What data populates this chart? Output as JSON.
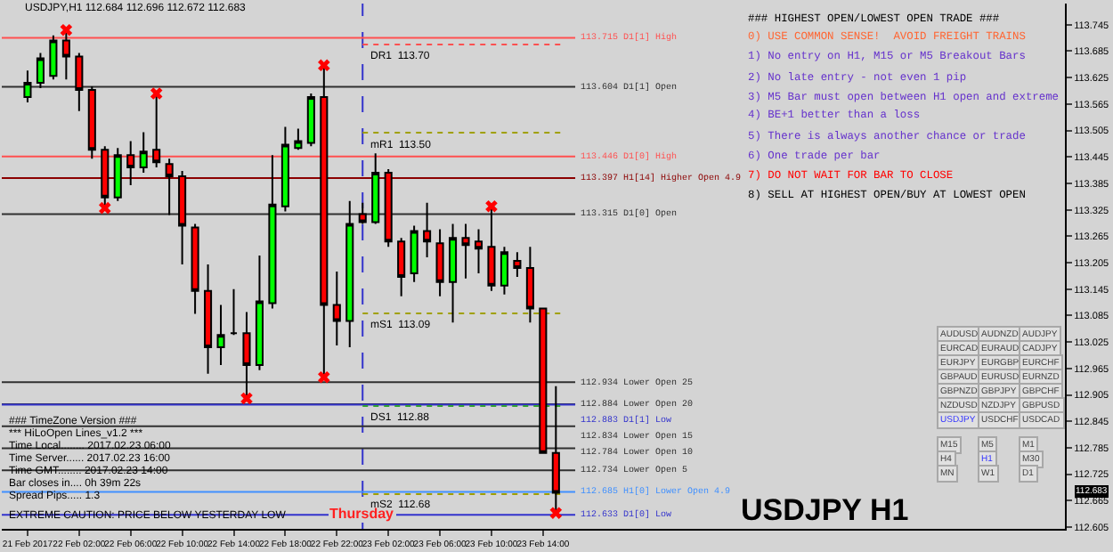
{
  "chart_data": [
    {
      "type": "candlestick",
      "title": "USDJPY,H1 112.684 112.696 112.672 112.683",
      "x": [
        "2017-02-21T22:00",
        "2017-02-21T23:00",
        "2017-02-22T00:00",
        "2017-02-22T01:00",
        "2017-02-22T02:00",
        "2017-02-22T03:00",
        "2017-02-22T04:00",
        "2017-02-22T05:00",
        "2017-02-22T06:00",
        "2017-02-22T07:00",
        "2017-02-22T08:00",
        "2017-02-22T09:00",
        "2017-02-22T10:00",
        "2017-02-22T11:00",
        "2017-02-22T12:00",
        "2017-02-22T13:00",
        "2017-02-22T14:00",
        "2017-02-22T15:00",
        "2017-02-22T16:00",
        "2017-02-22T17:00",
        "2017-02-22T18:00",
        "2017-02-22T19:00",
        "2017-02-22T20:00",
        "2017-02-22T21:00",
        "2017-02-22T22:00",
        "2017-02-22T23:00",
        "2017-02-23T00:00",
        "2017-02-23T01:00",
        "2017-02-23T02:00",
        "2017-02-23T03:00",
        "2017-02-23T04:00",
        "2017-02-23T05:00",
        "2017-02-23T06:00",
        "2017-02-23T07:00",
        "2017-02-23T08:00",
        "2017-02-23T09:00",
        "2017-02-23T10:00",
        "2017-02-23T11:00",
        "2017-02-23T12:00",
        "2017-02-23T13:00",
        "2017-02-23T14:00",
        "2017-02-23T15:00"
      ],
      "ohlc": [
        [
          113.581,
          113.641,
          113.569,
          113.613
        ],
        [
          113.613,
          113.681,
          113.601,
          113.669
        ],
        [
          113.629,
          113.721,
          113.621,
          113.709
        ],
        [
          113.709,
          113.733,
          113.621,
          113.673
        ],
        [
          113.673,
          113.681,
          113.549,
          113.597
        ],
        [
          113.597,
          113.605,
          113.441,
          113.461
        ],
        [
          113.461,
          113.469,
          113.329,
          113.353
        ],
        [
          113.353,
          113.465,
          113.345,
          113.449
        ],
        [
          113.449,
          113.481,
          113.381,
          113.421
        ],
        [
          113.421,
          113.501,
          113.409,
          113.457
        ],
        [
          113.461,
          113.589,
          113.421,
          113.433
        ],
        [
          113.429,
          113.441,
          113.313,
          113.401
        ],
        [
          113.401,
          113.413,
          113.201,
          113.289
        ],
        [
          113.285,
          113.293,
          113.089,
          113.141
        ],
        [
          113.141,
          113.201,
          112.953,
          113.013
        ],
        [
          113.013,
          113.109,
          112.973,
          113.041
        ],
        [
          113.045,
          113.145,
          113.041,
          113.045
        ],
        [
          113.045,
          113.093,
          112.897,
          112.973
        ],
        [
          112.973,
          113.221,
          112.961,
          113.117
        ],
        [
          113.113,
          113.449,
          113.101,
          113.337
        ],
        [
          113.333,
          113.513,
          113.321,
          113.473
        ],
        [
          113.465,
          113.509,
          113.461,
          113.481
        ],
        [
          113.477,
          113.589,
          113.469,
          113.581
        ],
        [
          113.581,
          113.653,
          112.945,
          113.109
        ],
        [
          113.109,
          113.185,
          113.017,
          113.073
        ],
        [
          113.073,
          113.345,
          113.013,
          113.293
        ],
        [
          113.315,
          113.341,
          113.293,
          113.297
        ],
        [
          113.297,
          113.453,
          113.293,
          113.409
        ],
        [
          113.409,
          113.417,
          113.241,
          113.253
        ],
        [
          113.253,
          113.261,
          113.129,
          113.173
        ],
        [
          113.181,
          113.289,
          113.161,
          113.277
        ],
        [
          113.277,
          113.341,
          113.217,
          113.253
        ],
        [
          113.249,
          113.281,
          113.129,
          113.161
        ],
        [
          113.161,
          113.293,
          113.069,
          113.261
        ],
        [
          113.261,
          113.293,
          113.169,
          113.245
        ],
        [
          113.253,
          113.281,
          113.181,
          113.237
        ],
        [
          113.241,
          113.333,
          113.141,
          113.153
        ],
        [
          113.153,
          113.241,
          113.133,
          113.229
        ],
        [
          113.209,
          113.229,
          113.173,
          113.193
        ],
        [
          113.193,
          113.241,
          113.069,
          113.101
        ],
        [
          113.101,
          113.101,
          112.773,
          112.773
        ],
        [
          112.773,
          112.925,
          112.637,
          112.683
        ]
      ],
      "colors": [
        "#00ff00",
        "#00ff00",
        "#00ff00",
        "#ff0000",
        "#ff0000",
        "#ff0000",
        "#ff0000",
        "#00ff00",
        "#ff0000",
        "#00ff00",
        "#ff0000",
        "#ff0000",
        "#ff0000",
        "#ff0000",
        "#ff0000",
        "#00ff00",
        "#000000",
        "#ff0000",
        "#00ff00",
        "#00ff00",
        "#00ff00",
        "#00ff00",
        "#00ff00",
        "#ff0000",
        "#ff0000",
        "#00ff00",
        "#ff0000",
        "#00ff00",
        "#ff0000",
        "#ff0000",
        "#00ff00",
        "#ff0000",
        "#ff0000",
        "#00ff00",
        "#ff0000",
        "#ff0000",
        "#ff0000",
        "#00ff00",
        "#ff0000",
        "#ff0000",
        "#ff0000",
        "#ff0000"
      ],
      "series": [
        {
          "type": "scatter",
          "marker": "cross",
          "color": "#ff0000",
          "x": [
            "2017-02-22T01:00",
            "2017-02-22T04:00",
            "2017-02-22T08:00",
            "2017-02-22T15:00",
            "2017-02-22T21:00",
            "2017-02-22T21:00",
            "2017-02-23T10:00",
            "2017-02-23T15:00"
          ],
          "values": [
            113.733,
            113.329,
            113.589,
            112.897,
            113.653,
            112.945,
            113.333,
            112.637
          ]
        }
      ],
      "xlim": [
        "2017-02-21T20:00",
        "2017-02-25T06:30"
      ],
      "xticks": [
        {
          "value": "2017-02-21T22:00",
          "label": "21 Feb 2017"
        },
        {
          "value": "2017-02-22T02:00",
          "label": "22 Feb 02:00"
        },
        {
          "value": "2017-02-22T06:00",
          "label": "22 Feb 06:00"
        },
        {
          "value": "2017-02-22T10:00",
          "label": "22 Feb 10:00"
        },
        {
          "value": "2017-02-22T14:00",
          "label": "22 Feb 14:00"
        },
        {
          "value": "2017-02-22T18:00",
          "label": "22 Feb 18:00"
        },
        {
          "value": "2017-02-22T22:00",
          "label": "22 Feb 22:00"
        },
        {
          "value": "2017-02-23T02:00",
          "label": "23 Feb 02:00"
        },
        {
          "value": "2017-02-23T06:00",
          "label": "23 Feb 06:00"
        },
        {
          "value": "2017-02-23T10:00",
          "label": "23 Feb 10:00"
        },
        {
          "value": "2017-02-23T14:00",
          "label": "23 Feb 14:00"
        }
      ],
      "ylim": [
        112.601,
        113.793
      ],
      "yticks": [
        113.745,
        113.685,
        113.625,
        113.565,
        113.505,
        113.445,
        113.385,
        113.325,
        113.265,
        113.205,
        113.145,
        113.085,
        113.025,
        112.965,
        112.905,
        112.845,
        112.785,
        112.725,
        112.665,
        112.605,
        {
          "value": 112.683,
          "label": "112.683"
        }
      ],
      "ref_lines": [
        {
          "axis": "x",
          "value": "2017-02-23T00:00",
          "label": "Thursday",
          "color": "#3333cc",
          "line_style": "dashed"
        },
        {
          "axis": "y",
          "value": 113.715,
          "label": "113.715 D1[1] High",
          "color": "#ff5050",
          "line_style": "solid"
        },
        {
          "axis": "y",
          "value": 113.7,
          "label": "DR1  113.70",
          "color": "#ff5050",
          "line_style": "dotted"
        },
        {
          "axis": "y",
          "value": 113.604,
          "label": "113.604 D1[1] Open",
          "color": "#303030",
          "line_style": "solid"
        },
        {
          "axis": "y",
          "value": 113.5,
          "label": "mR1  113.50",
          "color": "#a0a000",
          "line_style": "dotted"
        },
        {
          "axis": "y",
          "value": 113.446,
          "label": "113.446 D1[0] High",
          "color": "#ff5050",
          "line_style": "solid"
        },
        {
          "axis": "y",
          "value": 113.397,
          "label": "113.397 H1[14] Higher Open 4.9",
          "color": "#8b0000",
          "line_style": "solid"
        },
        {
          "axis": "y",
          "value": 113.315,
          "label": "113.315 D1[0] Open",
          "color": "#303030",
          "line_style": "solid"
        },
        {
          "axis": "y",
          "value": 113.09,
          "label": "mS1  113.09",
          "color": "#a0a000",
          "line_style": "dotted"
        },
        {
          "axis": "y",
          "value": 112.934,
          "label": "112.934 Lower Open 25",
          "color": "#303030",
          "line_style": "solid"
        },
        {
          "axis": "y",
          "value": 112.884,
          "label": "112.884 Lower Open 20",
          "color": "#303030",
          "line_style": "solid"
        },
        {
          "axis": "y",
          "value": 112.883,
          "label": "112.883 D1[1] Low",
          "color": "#3333cc",
          "line_style": "solid"
        },
        {
          "axis": "y",
          "value": 112.88,
          "label": "DS1  112.88",
          "color": "#30a030",
          "line_style": "dotted"
        },
        {
          "axis": "y",
          "value": 112.834,
          "label": "112.834 Lower Open 15",
          "color": "#303030",
          "line_style": "solid"
        },
        {
          "axis": "y",
          "value": 112.784,
          "label": "112.784 Lower Open 10",
          "color": "#303030",
          "line_style": "solid"
        },
        {
          "axis": "y",
          "value": 112.734,
          "label": "112.734 Lower Open 5",
          "color": "#303030",
          "line_style": "solid"
        },
        {
          "axis": "y",
          "value": 112.685,
          "label": "112.685 H1[0] Lower Open 4.9",
          "color": "#4090ff",
          "line_style": "solid"
        },
        {
          "axis": "y",
          "value": 112.68,
          "label": "mS2  112.68",
          "color": "#a0a000",
          "line_style": "dotted"
        },
        {
          "axis": "y",
          "value": 112.633,
          "label": "112.633 D1[0] Low",
          "color": "#3333cc",
          "line_style": "solid"
        }
      ],
      "annotations": [
        "### TimeZone Version ###",
        "*** HiLoOpen Lines_v1.2 ***",
        "Time Local........ 2017.02.23 06:00",
        "Time Server...... 2017.02.23 16:00",
        "Time GMT........ 2017.02.23 14:00",
        "Bar closes in.... 0h 39m 22s",
        "Spread Pips..... 1.3",
        "EXTREME CAUTION: PRICE BELOW YESTERDAY LOW"
      ]
    },
    {
      "type": "other",
      "title": "### HIGHEST OPEN/LOWEST OPEN TRADE ###",
      "annotations": [
        "0) USE COMMON SENSE!  AVOID FREIGHT TRAINS",
        "1) No entry on H1, M15 or M5 Breakout Bars",
        "2) No late entry - not even 1 pip",
        "3) M5 Bar must open between H1 open and extreme",
        "4) BE+1 better than a loss",
        "5) There is always another chance or trade",
        "6) One trade per bar",
        "7) DO NOT WAIT FOR BAR TO CLOSE",
        "8) SELL AT HIGHEST OPEN/BUY AT LOWEST OPEN"
      ],
      "colors": [
        "#ff6633",
        "#6633cc",
        "#6633cc",
        "#6633cc",
        "#6633cc",
        "#6633cc",
        "#6633cc",
        "#ff0000",
        "#000000"
      ]
    },
    {
      "type": "other",
      "annotations": [
        "AUDUSD",
        "AUDNZD",
        "AUDJPY",
        "EURCAD",
        "EURAUD",
        "CADJPY",
        "EURJPY",
        "EURGBP",
        "EURCHF",
        "GBPAUD",
        "EURUSD",
        "EURNZD",
        "GBPNZD",
        "GBPJPY",
        "GBPCHF",
        "NZDUSD",
        "NZDJPY",
        "GBPUSD",
        "USDJPY",
        "USDCHF",
        "USDCAD"
      ],
      "colors": [
        "#404040",
        "#404040",
        "#404040",
        "#404040",
        "#404040",
        "#404040",
        "#404040",
        "#404040",
        "#404040",
        "#404040",
        "#404040",
        "#404040",
        "#404040",
        "#404040",
        "#404040",
        "#404040",
        "#404040",
        "#404040",
        "#3333ff",
        "#404040",
        "#404040"
      ]
    },
    {
      "type": "other",
      "annotations": [
        "M15",
        "M5",
        "M1",
        "H4",
        "H1",
        "M30",
        "MN",
        "W1",
        "D1"
      ],
      "colors": [
        "#404040",
        "#404040",
        "#404040",
        "#404040",
        "#3333ff",
        "#404040",
        "#404040",
        "#404040",
        "#404040"
      ]
    },
    {
      "type": "other",
      "title": "USDJPY H1"
    }
  ]
}
